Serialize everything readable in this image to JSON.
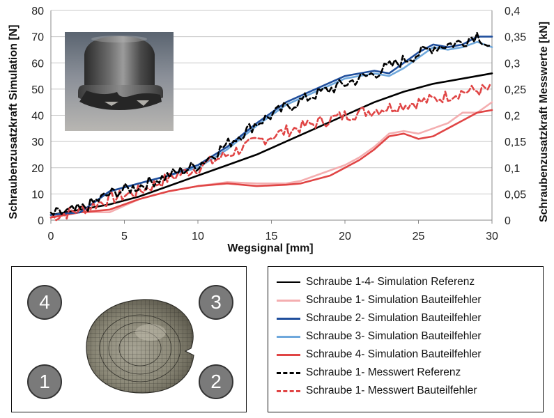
{
  "chart_data": {
    "type": "line",
    "xlabel": "Wegsignal [mm]",
    "ylabel_left": "Schraubenzusatzkraft Simulation [N]",
    "ylabel_right": "Schraubenzusatzkraft Messwerte [kN]",
    "xlim": [
      0,
      30
    ],
    "ylim_left": [
      0,
      80
    ],
    "ylim_right": [
      0,
      0.4
    ],
    "x_ticks": [
      "0",
      "5",
      "10",
      "15",
      "20",
      "25",
      "30"
    ],
    "y_left_ticks": [
      "0",
      "10",
      "20",
      "30",
      "40",
      "50",
      "60",
      "70",
      "80"
    ],
    "y_right_ticks": [
      "0",
      "0,05",
      "0,1",
      "0,15",
      "0,2",
      "0,25",
      "0,3",
      "0,35",
      "0,4"
    ],
    "grid": "horizontal",
    "series": [
      {
        "name": "Schraube 1-4- Simulation Referenz",
        "color": "#000000",
        "dash": "solid",
        "axis": "left",
        "x": [
          0,
          2,
          4,
          6,
          8,
          10,
          12,
          14,
          16,
          18,
          20,
          22,
          24,
          26,
          28,
          30
        ],
        "y": [
          2,
          4,
          6,
          9,
          13,
          17,
          21,
          25,
          30,
          35,
          40,
          45,
          49,
          52,
          54,
          56
        ]
      },
      {
        "name": "Schraube 1- Simulation Bauteilfehler",
        "color": "#f4aeb0",
        "dash": "solid",
        "axis": "left",
        "x": [
          0,
          2,
          4,
          6,
          8,
          10,
          12,
          14,
          16,
          17,
          19,
          20,
          21,
          22,
          23,
          24,
          25,
          26,
          27,
          28,
          29,
          30
        ],
        "y": [
          1,
          3,
          3,
          8,
          11,
          13,
          14.5,
          14,
          14,
          15,
          19,
          21,
          24,
          28,
          33,
          34,
          33,
          35,
          37,
          41,
          41,
          45
        ]
      },
      {
        "name": "Schraube 2- Simulation Bauteilfehler",
        "color": "#1f4e9c",
        "dash": "solid",
        "axis": "left",
        "x": [
          0,
          2,
          4,
          6,
          8,
          10,
          12,
          14,
          16,
          18,
          20,
          22,
          23,
          24,
          25,
          26,
          27,
          28,
          29,
          30
        ],
        "y": [
          2,
          3,
          11,
          14,
          17,
          21,
          28,
          37,
          45,
          50,
          55,
          57,
          56,
          60,
          64,
          67,
          66,
          67,
          70,
          70
        ]
      },
      {
        "name": "Schraube 3- Simulation Bauteilfehler",
        "color": "#6fa8dc",
        "dash": "solid",
        "axis": "left",
        "x": [
          0,
          2,
          4,
          6,
          8,
          10,
          12,
          14,
          16,
          18,
          20,
          22,
          23,
          24,
          25,
          26,
          27,
          28,
          29,
          30
        ],
        "y": [
          2,
          3,
          11,
          14,
          17,
          20,
          27,
          36,
          44,
          49,
          54,
          56,
          55,
          58,
          62,
          66,
          65,
          66,
          68,
          66
        ]
      },
      {
        "name": "Schraube 4- Simulation Bauteilfehler",
        "color": "#e04545",
        "dash": "solid",
        "axis": "left",
        "x": [
          0,
          2,
          4,
          6,
          8,
          10,
          12,
          14,
          16,
          17,
          19,
          20,
          21,
          22,
          23,
          24,
          25,
          26,
          27,
          28,
          29,
          30
        ],
        "y": [
          1,
          3,
          4,
          8,
          11,
          13,
          14,
          13,
          13.5,
          14,
          17,
          20,
          23,
          27,
          32,
          33,
          31,
          32,
          35,
          38,
          41,
          42
        ]
      },
      {
        "name": "Schraube 1- Messwert Referenz",
        "color": "#000000",
        "dash": "dashed",
        "axis": "right",
        "x": [
          0,
          2,
          4,
          6,
          8,
          10,
          12,
          14,
          16,
          18,
          20,
          22,
          24,
          26,
          28,
          29,
          30
        ],
        "y": [
          0.01,
          0.02,
          0.05,
          0.065,
          0.085,
          0.105,
          0.145,
          0.185,
          0.215,
          0.24,
          0.26,
          0.28,
          0.305,
          0.33,
          0.34,
          0.355,
          0.325
        ]
      },
      {
        "name": "Schraube 1- Messwert Bauteilfehler",
        "color": "#e04545",
        "dash": "dashed",
        "axis": "right",
        "x": [
          0,
          2,
          4,
          6,
          8,
          10,
          12,
          14,
          16,
          18,
          20,
          22,
          24,
          26,
          28,
          30
        ],
        "y": [
          0.005,
          0.02,
          0.04,
          0.055,
          0.08,
          0.1,
          0.125,
          0.15,
          0.17,
          0.185,
          0.2,
          0.21,
          0.22,
          0.23,
          0.245,
          0.25
        ]
      }
    ],
    "annotations": [
      "photo of deformed screw cap specimen (top-left inset)"
    ]
  },
  "mesh_panel": {
    "badges": [
      "4",
      "3",
      "1",
      "2"
    ],
    "image": "fe-mesh-of-deformed-cap"
  }
}
